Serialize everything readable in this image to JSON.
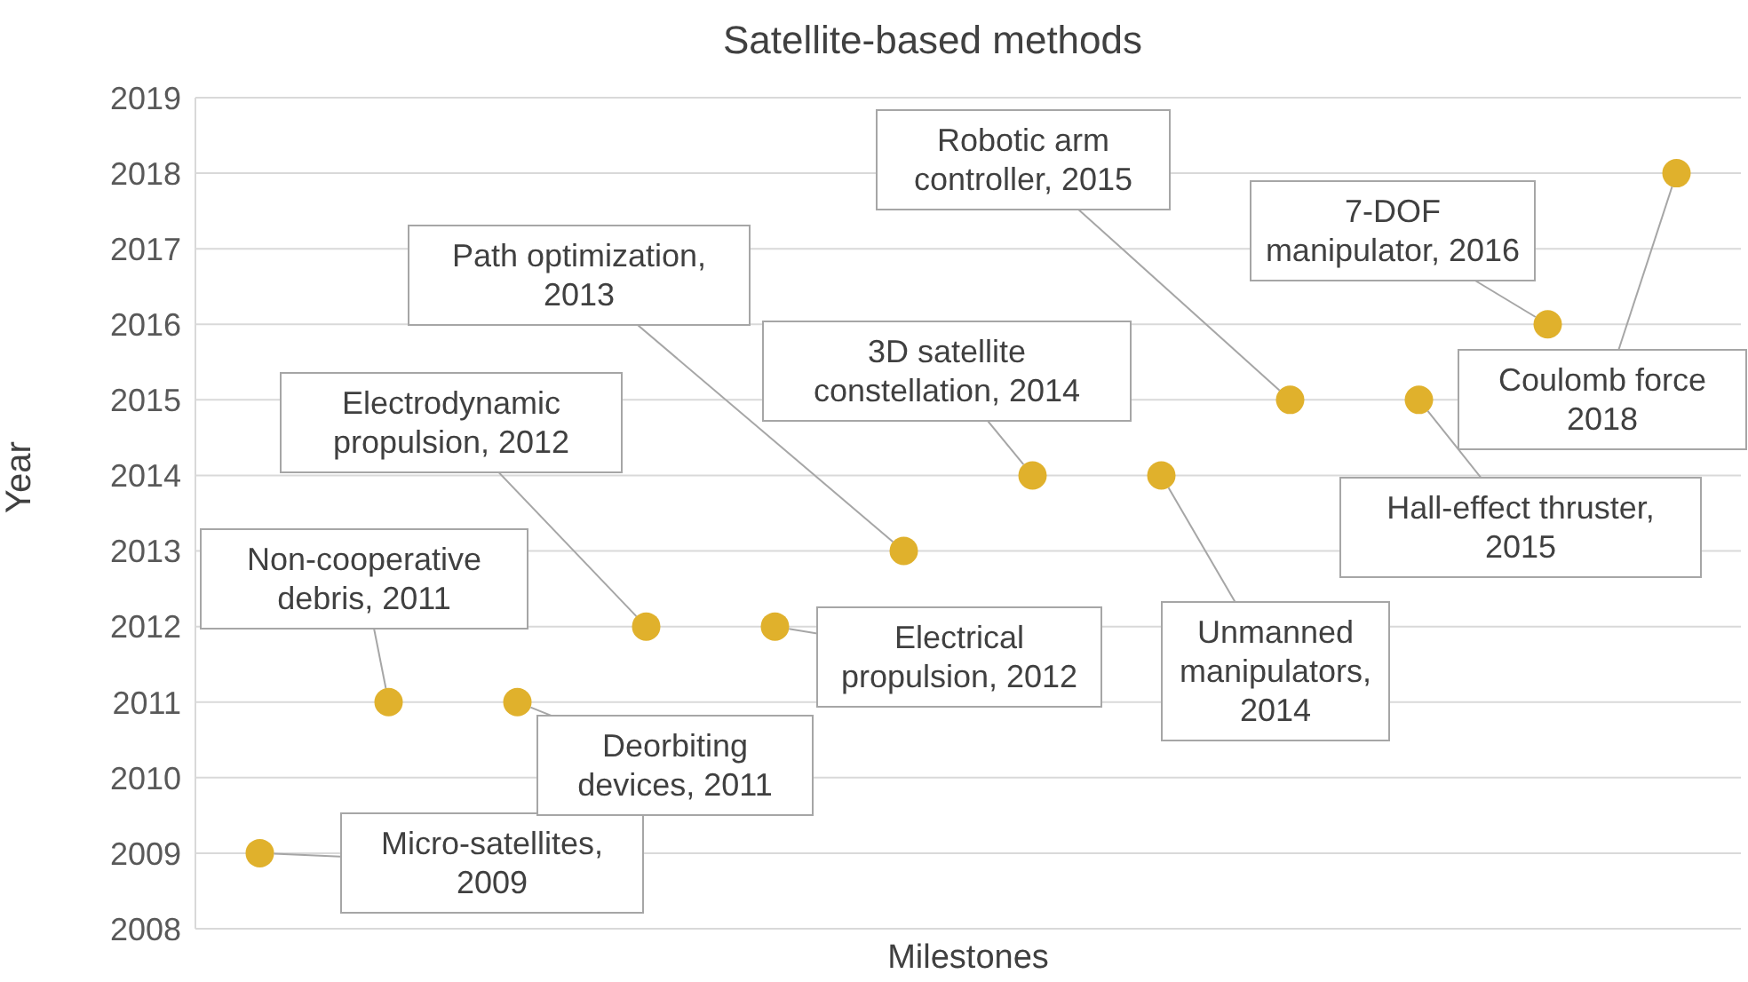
{
  "chart_data": {
    "type": "scatter",
    "title": "Satellite-based methods",
    "xlabel": "Milestones",
    "ylabel": "Year",
    "categories": [
      null,
      null,
      null,
      null,
      null,
      null,
      null,
      null,
      null,
      null,
      null,
      null
    ],
    "series": [
      {
        "color": "#e0b12c",
        "values": [
          2009,
          2011,
          2011,
          2012,
          2012,
          2013,
          2014,
          2014,
          2015,
          2015,
          2016,
          2018
        ]
      }
    ],
    "ylim": [
      2008,
      2019
    ],
    "yticks": [
      2008,
      2009,
      2010,
      2011,
      2012,
      2013,
      2014,
      2015,
      2016,
      2017,
      2018,
      2019
    ],
    "grid": true,
    "marker": "circle",
    "tick_labels": "y",
    "annotations": [
      "Micro-satellites, 2009",
      "Non-cooperative debris, 2011",
      "Deorbiting devices, 2011",
      "Electrodynamic propulsion, 2012",
      "Electrical propulsion, 2012",
      "Path optimization, 2013",
      "3D satellite constellation, 2014",
      "Unmanned manipulators, 2014",
      "Robotic arm controller, 2015",
      "Hall-effect thruster, 2015",
      "7-DOF manipulator, 2016",
      "Coulomb force 2018"
    ]
  }
}
